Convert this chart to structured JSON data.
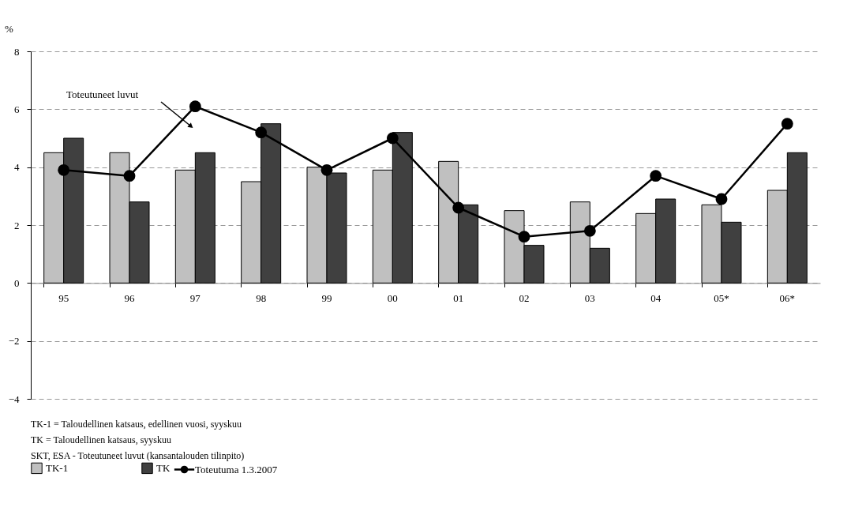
{
  "chart_data": {
    "type": "bar",
    "ylabel": "%",
    "categories": [
      "95",
      "96",
      "97",
      "98",
      "99",
      "00",
      "01",
      "02",
      "03",
      "04",
      "05*",
      "06*"
    ],
    "series": [
      {
        "name": "TK-1",
        "color": "#c0c0c0",
        "values": [
          4.5,
          4.5,
          3.9,
          3.5,
          4.0,
          3.9,
          4.2,
          2.5,
          2.8,
          2.4,
          2.7,
          3.2
        ]
      },
      {
        "name": "TK",
        "color": "#404040",
        "values": [
          5.0,
          2.8,
          4.5,
          5.5,
          3.8,
          5.2,
          2.7,
          1.3,
          1.2,
          2.9,
          2.1,
          4.5
        ]
      },
      {
        "name": "Toteutuma  1.3.2007",
        "type": "line",
        "color": "#000000",
        "values": [
          3.9,
          3.7,
          6.1,
          5.2,
          3.9,
          5.0,
          2.6,
          1.6,
          1.8,
          3.7,
          2.9,
          5.5
        ]
      }
    ],
    "ylim": [
      -4,
      8
    ],
    "yticks": [
      -4,
      -2,
      0,
      2,
      4,
      6,
      8
    ],
    "grid": "y",
    "legend": "bottom",
    "marker": "circle",
    "line_style": "solid",
    "annotations": [
      "Toteutuneet luvut",
      "TK-1 = Taloudellinen katsaus, edellinen vuosi, syyskuu",
      "TK    = Taloudellinen katsaus, syyskuu",
      "SKT, ESA  -  Toteutuneet luvut (kansantalouden tilinpito)"
    ]
  }
}
